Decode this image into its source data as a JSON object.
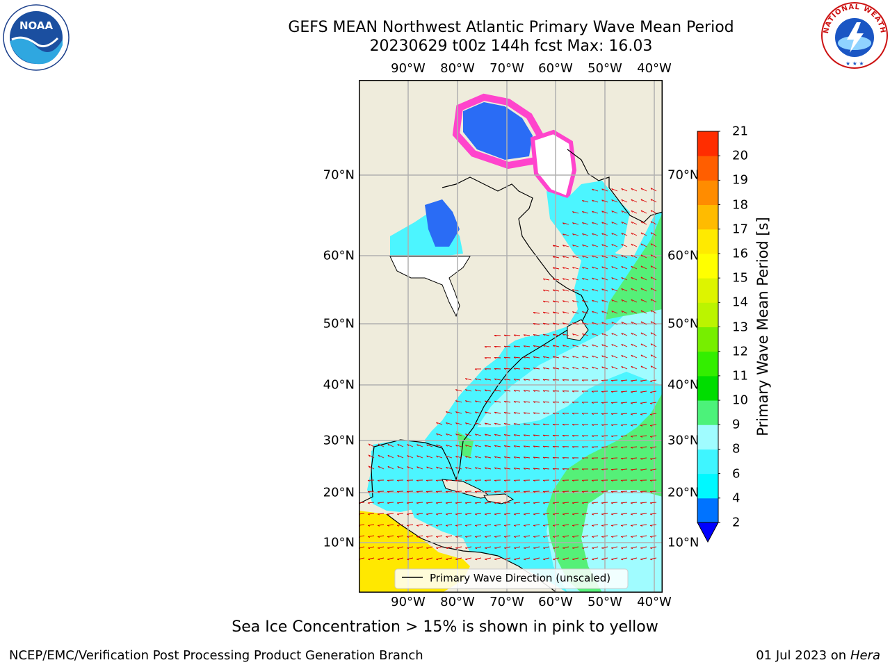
{
  "title": {
    "line1": "GEFS MEAN Northwest Atlantic Primary Wave Mean Period",
    "line2": "20230629 t00z 144h fcst   Max: 16.03"
  },
  "map": {
    "lon_labels": [
      "90°W",
      "80°W",
      "70°W",
      "60°W",
      "50°W",
      "40°W"
    ],
    "lat_labels": [
      "70°N",
      "60°N",
      "50°N",
      "40°N",
      "30°N",
      "20°N",
      "10°N"
    ],
    "legend_label": "Primary Wave Direction (unscaled)",
    "colors": {
      "land": "#efecdc",
      "ocean_short": "#4cf5ff",
      "ocean_mid": "#a0fcff",
      "ocean_long": "#55f078",
      "ice_pink": "#ff44cc",
      "ice_blue": "#2a6cf5",
      "tropical": "#ffe800",
      "arrows": "#dd0000"
    }
  },
  "colorbar": {
    "label": "Primary Wave Mean Period [s]",
    "ticks": [
      "2",
      "4",
      "6",
      "8",
      "9",
      "10",
      "11",
      "12",
      "13",
      "14",
      "15",
      "16",
      "17",
      "18",
      "19",
      "20",
      "21"
    ],
    "colors": [
      "#0073ff",
      "#00f8ff",
      "#3ff5ff",
      "#a0fcff",
      "#4cf27a",
      "#00dd00",
      "#33ee00",
      "#77ee00",
      "#bbf400",
      "#ddf400",
      "#ffff00",
      "#ffea00",
      "#ffbb00",
      "#ff8c00",
      "#ff5e00",
      "#ff2d00"
    ],
    "extend_color": "#0000ff"
  },
  "subtitle": "Sea Ice Concentration > 15% is shown in pink to yellow",
  "footer": {
    "left": "NCEP/EMC/Verification Post Processing Product Generation Branch",
    "right_prefix": "01 Jul 2023 on ",
    "right_host": "Hera"
  },
  "logos": {
    "noaa_text": "NOAA",
    "nws_text": "NATIONAL WEATHER SERVICE"
  }
}
